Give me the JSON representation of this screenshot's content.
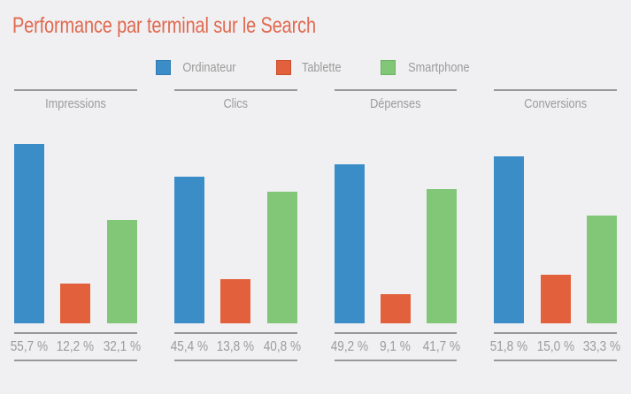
{
  "page": {
    "background_color": "#f0f0f2",
    "title_color": "#e0694f",
    "text_color": "#9b9b9b",
    "rule_color": "#98989a"
  },
  "chart_data": {
    "type": "bar",
    "title": "Performance par terminal sur le Search",
    "categories": [
      "Impressions",
      "Clics",
      "Dépenses",
      "Conversions"
    ],
    "series": [
      {
        "name": "Ordinateur",
        "color": "#3b8dc8",
        "swatch_border": "#2f7ab2",
        "values": [
          55.7,
          45.4,
          49.2,
          51.8
        ],
        "value_labels": [
          "55,7 %",
          "45,4 %",
          "49,2 %",
          "51,8 %"
        ]
      },
      {
        "name": "Tablette",
        "color": "#e2603b",
        "swatch_border": "#c94f2e",
        "values": [
          12.2,
          13.8,
          9.1,
          15.0
        ],
        "value_labels": [
          "12,2 %",
          "13,8 %",
          "9,1 %",
          "15,0 %"
        ]
      },
      {
        "name": "Smartphone",
        "color": "#82c778",
        "swatch_border": "#6cb163",
        "values": [
          32.1,
          40.8,
          41.7,
          33.3
        ],
        "value_labels": [
          "32,1 %",
          "40,8 %",
          "41,7 %",
          "33,3 %"
        ]
      }
    ],
    "unit": "%",
    "ylim": [
      0,
      56
    ],
    "grid": false,
    "legend_position": "top",
    "value_labels_position": "bottom"
  }
}
